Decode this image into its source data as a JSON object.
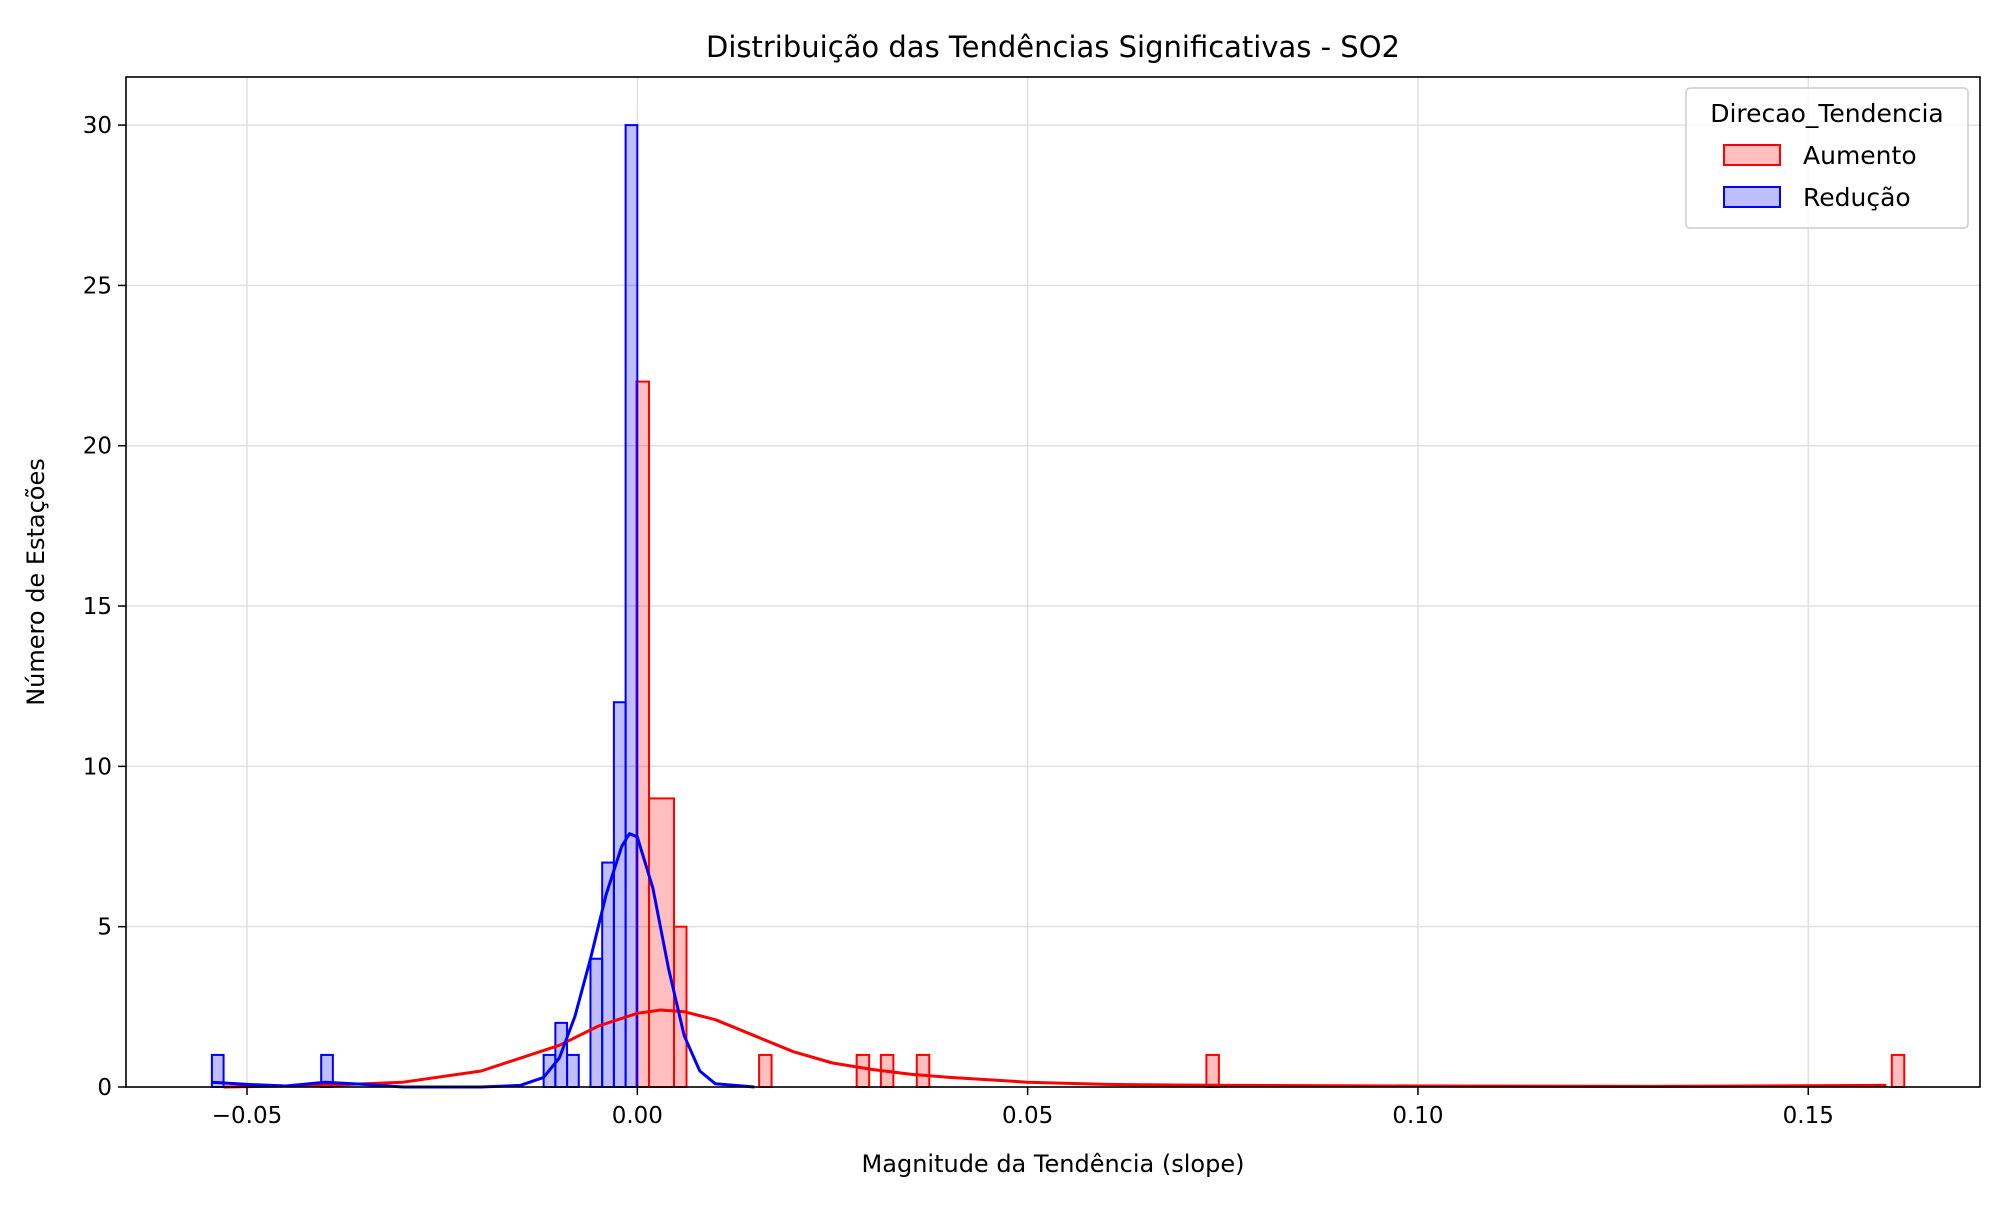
{
  "chart_data": {
    "type": "histogram",
    "title": "Distribuição das Tendências Significativas - SO2",
    "xlabel": "Magnitude da Tendência (slope)",
    "ylabel": "Número de Estações",
    "xlim": [
      -0.0655,
      0.172
    ],
    "ylim": [
      0,
      31.5
    ],
    "xticks": [
      -0.05,
      0.0,
      0.05,
      0.1,
      0.15
    ],
    "xtick_labels": [
      "−0.05",
      "0.00",
      "0.05",
      "0.10",
      "0.15"
    ],
    "yticks": [
      0,
      5,
      10,
      15,
      20,
      25,
      30
    ],
    "ytick_labels": [
      "0",
      "5",
      "10",
      "15",
      "20",
      "25",
      "30"
    ],
    "grid": true,
    "legend": {
      "title": "Direcao_Tendencia",
      "placement": "upper right"
    },
    "series": [
      {
        "name": "Aumento",
        "color": "#ff0000",
        "fill": "#ff0000",
        "bins": [
          {
            "x0": -0.0001,
            "x1": 0.0015,
            "count": 22
          },
          {
            "x0": 0.0015,
            "x1": 0.0047,
            "count": 9
          },
          {
            "x0": 0.0047,
            "x1": 0.0063,
            "count": 5
          },
          {
            "x0": 0.0156,
            "x1": 0.0172,
            "count": 1
          },
          {
            "x0": 0.0281,
            "x1": 0.0297,
            "count": 1
          },
          {
            "x0": 0.0312,
            "x1": 0.0328,
            "count": 1
          },
          {
            "x0": 0.0358,
            "x1": 0.0374,
            "count": 1
          },
          {
            "x0": 0.0729,
            "x1": 0.0745,
            "count": 1
          },
          {
            "x0": 0.1607,
            "x1": 0.1623,
            "count": 1
          }
        ],
        "kde": {
          "x": [
            -0.053,
            -0.04,
            -0.03,
            -0.02,
            -0.01,
            -0.005,
            0.0,
            0.003,
            0.006,
            0.01,
            0.015,
            0.02,
            0.025,
            0.03,
            0.035,
            0.04,
            0.05,
            0.06,
            0.075,
            0.1,
            0.13,
            0.16
          ],
          "y": [
            0.0,
            0.05,
            0.15,
            0.5,
            1.3,
            1.9,
            2.3,
            2.4,
            2.35,
            2.1,
            1.6,
            1.1,
            0.75,
            0.55,
            0.4,
            0.3,
            0.15,
            0.08,
            0.05,
            0.03,
            0.02,
            0.05
          ]
        }
      },
      {
        "name": "Redução",
        "color": "#0000ff",
        "fill": "#0000ff",
        "bins": [
          {
            "x0": -0.0545,
            "x1": -0.053,
            "count": 1
          },
          {
            "x0": -0.0405,
            "x1": -0.039,
            "count": 1
          },
          {
            "x0": -0.012,
            "x1": -0.0105,
            "count": 1
          },
          {
            "x0": -0.0105,
            "x1": -0.009,
            "count": 2
          },
          {
            "x0": -0.009,
            "x1": -0.0075,
            "count": 1
          },
          {
            "x0": -0.006,
            "x1": -0.0045,
            "count": 4
          },
          {
            "x0": -0.0045,
            "x1": -0.003,
            "count": 7
          },
          {
            "x0": -0.003,
            "x1": -0.0015,
            "count": 12
          },
          {
            "x0": -0.0015,
            "x1": 0.0,
            "count": 30
          }
        ],
        "kde": {
          "x": [
            -0.0545,
            -0.05,
            -0.045,
            -0.04,
            -0.035,
            -0.03,
            -0.025,
            -0.02,
            -0.015,
            -0.012,
            -0.01,
            -0.008,
            -0.006,
            -0.004,
            -0.002,
            -0.001,
            0.0,
            0.002,
            0.004,
            0.006,
            0.008,
            0.01,
            0.015
          ],
          "y": [
            0.15,
            0.08,
            0.03,
            0.15,
            0.08,
            0.0,
            0.0,
            0.0,
            0.05,
            0.3,
            0.9,
            2.2,
            4.0,
            6.0,
            7.5,
            7.9,
            7.8,
            6.2,
            3.7,
            1.6,
            0.5,
            0.1,
            0.0
          ]
        }
      }
    ]
  }
}
